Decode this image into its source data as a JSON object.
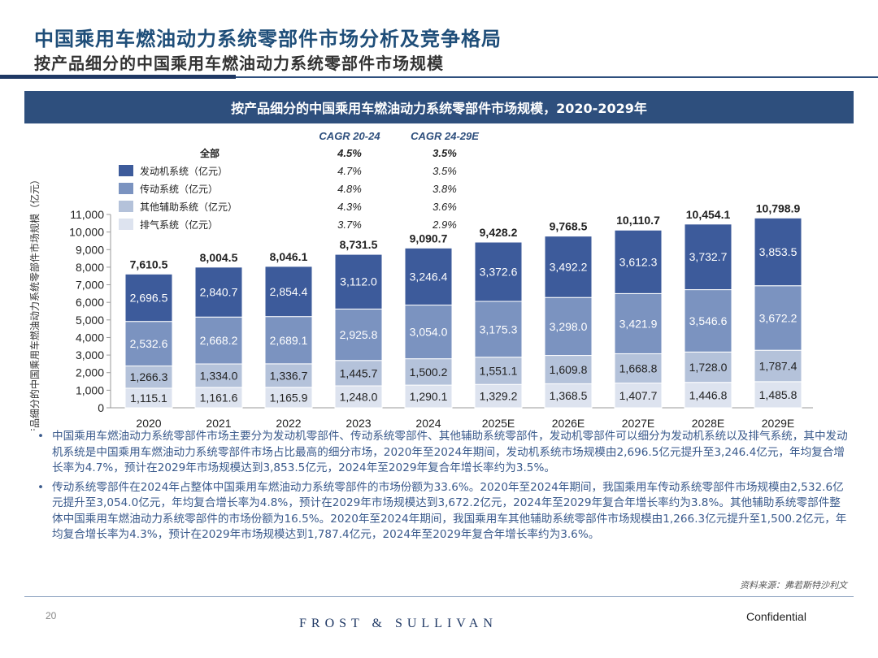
{
  "header": {
    "title": "中国乘用车燃油动力系统零部件市场分析及竞争格局",
    "subtitle": "按产品细分的中国乘用车燃油动力系统零部件市场规模"
  },
  "chart_banner": "按产品细分的中国乘用车燃油动力系统零部件市场规模，2020-2029年",
  "chart_data": {
    "type": "bar",
    "stacked": true,
    "title": "按产品细分的中国乘用车燃油动力系统零部件市场规模，2020-2029年",
    "ylabel": "按产品细分的中国乘用车燃油动力系统零部件市场规模（亿元）",
    "ylim": [
      0,
      11000
    ],
    "yticks": [
      "0",
      "1,000",
      "2,000",
      "3,000",
      "4,000",
      "5,000",
      "6,000",
      "7,000",
      "8,000",
      "9,000",
      "10,000",
      "11,000"
    ],
    "categories": [
      "2020",
      "2021",
      "2022",
      "2023",
      "2024",
      "2025E",
      "2026E",
      "2027E",
      "2028E",
      "2029E"
    ],
    "series": [
      {
        "name": "排气系统（亿元）",
        "color": "#dde3ef",
        "label_color": "#222222",
        "values": [
          1115.1,
          1161.6,
          1165.9,
          1248.0,
          1290.1,
          1329.2,
          1368.5,
          1407.7,
          1446.8,
          1485.8
        ],
        "labels": [
          "1,115.1",
          "1,161.6",
          "1,165.9",
          "1,248.0",
          "1,290.1",
          "1,329.2",
          "1,368.5",
          "1,407.7",
          "1,446.8",
          "1,485.8"
        ]
      },
      {
        "name": "其他辅助系统（亿元）",
        "color": "#b4c2da",
        "label_color": "#222222",
        "values": [
          1266.3,
          1334.0,
          1336.7,
          1445.7,
          1500.2,
          1551.1,
          1609.8,
          1668.8,
          1728.0,
          1787.4
        ],
        "labels": [
          "1,266.3",
          "1,334.0",
          "1,336.7",
          "1,445.7",
          "1,500.2",
          "1,551.1",
          "1,609.8",
          "1,668.8",
          "1,728.0",
          "1,787.4"
        ]
      },
      {
        "name": "传动系统（亿元）",
        "color": "#7b93c0",
        "label_color": "#ffffff",
        "values": [
          2532.6,
          2668.2,
          2689.1,
          2925.8,
          3054.0,
          3175.3,
          3298.0,
          3421.9,
          3546.6,
          3672.2
        ],
        "labels": [
          "2,532.6",
          "2,668.2",
          "2,689.1",
          "2,925.8",
          "3,054.0",
          "3,175.3",
          "3,298.0",
          "3,421.9",
          "3,546.6",
          "3,672.2"
        ]
      },
      {
        "name": "发动机系统（亿元）",
        "color": "#3d5b9b",
        "label_color": "#ffffff",
        "values": [
          2696.5,
          2840.7,
          2854.4,
          3112.0,
          3246.4,
          3372.6,
          3492.2,
          3612.3,
          3732.7,
          3853.5
        ],
        "labels": [
          "2,696.5",
          "2,840.7",
          "2,854.4",
          "3,112.0",
          "3,246.4",
          "3,372.6",
          "3,492.2",
          "3,612.3",
          "3,732.7",
          "3,853.5"
        ]
      }
    ],
    "totals": [
      7610.5,
      8004.5,
      8046.1,
      8731.5,
      9090.7,
      9428.2,
      9768.5,
      10110.7,
      10454.1,
      10798.9
    ],
    "total_labels": [
      "7,610.5",
      "8,004.5",
      "8,046.1",
      "8,731.5",
      "9,090.7",
      "9,428.2",
      "9,768.5",
      "10,110.7",
      "10,454.1",
      "10,798.9"
    ],
    "legend": {
      "placement": "top-left",
      "header_cagr1": "CAGR 20-24",
      "header_cagr2": "CAGR 24-29E",
      "rows": [
        {
          "label": "全部",
          "swatch": "",
          "cagr1": "4.5%",
          "cagr2": "3.5%"
        },
        {
          "label": "发动机系统（亿元）",
          "swatch": "#3d5b9b",
          "cagr1": "4.7%",
          "cagr2": "3.5%"
        },
        {
          "label": "传动系统（亿元）",
          "swatch": "#7b93c0",
          "cagr1": "4.8%",
          "cagr2": "3.8%"
        },
        {
          "label": "其他辅助系统（亿元）",
          "swatch": "#b4c2da",
          "cagr1": "4.3%",
          "cagr2": "3.6%"
        },
        {
          "label": "排气系统（亿元）",
          "swatch": "#dde3ef",
          "cagr1": "3.7%",
          "cagr2": "2.9%"
        }
      ]
    }
  },
  "bullets": [
    "中国乘用车燃油动力系统零部件市场主要分为发动机零部件、传动系统零部件、其他辅助系统零部件，发动机零部件可以细分为发动机系统以及排气系统，其中发动机系统是中国乘用车燃油动力系统零部件市场占比最高的细分市场，2020年至2024年期间，发动机系统市场规模由2,696.5亿元提升至3,246.4亿元，年均复合增长率为4.7%，预计在2029年市场规模达到3,853.5亿元，2024年至2029年复合年增长率约为3.5%。",
    "传动系统零部件在2024年占整体中国乘用车燃油动力系统零部件的市场份额为33.6%。2020年至2024年期间，我国乘用车传动系统零部件市场规模由2,532.6亿元提升至3,054.0亿元，年均复合增长率为4.8%，预计在2029年市场规模达到3,672.2亿元，2024年至2029年复合年增长率约为3.8%。其他辅助系统零部件整体中国乘用车燃油动力系统零部件的市场份额为16.5%。2020年至2024年期间，我国乘用车其他辅助系统零部件市场规模由1,266.3亿元提升至1,500.2亿元，年均复合增长率为4.3%，预计在2029年市场规模达到1,787.4亿元，2024年至2029年复合年增长率约为3.6%。"
  ],
  "footer": {
    "source": "资料来源：弗若斯特沙利文",
    "page_number": "20",
    "brand": "FROST & SULLIVAN",
    "confidential": "Confidential"
  }
}
